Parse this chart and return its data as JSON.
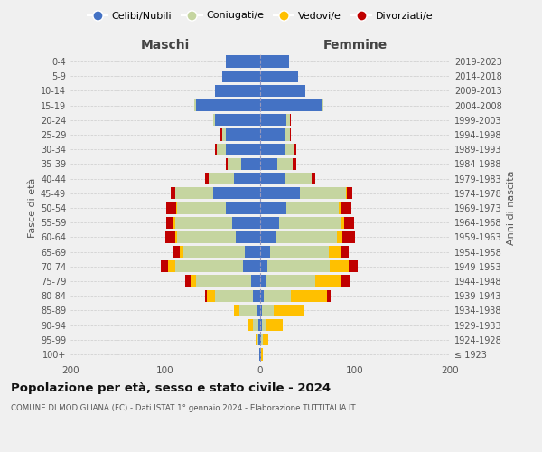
{
  "age_groups": [
    "100+",
    "95-99",
    "90-94",
    "85-89",
    "80-84",
    "75-79",
    "70-74",
    "65-69",
    "60-64",
    "55-59",
    "50-54",
    "45-49",
    "40-44",
    "35-39",
    "30-34",
    "25-29",
    "20-24",
    "15-19",
    "10-14",
    "5-9",
    "0-4"
  ],
  "birth_years": [
    "≤ 1923",
    "1924-1928",
    "1929-1933",
    "1934-1938",
    "1939-1943",
    "1944-1948",
    "1949-1953",
    "1954-1958",
    "1959-1963",
    "1964-1968",
    "1969-1973",
    "1974-1978",
    "1979-1983",
    "1984-1988",
    "1989-1993",
    "1994-1998",
    "1999-2003",
    "2004-2008",
    "2009-2013",
    "2014-2018",
    "2019-2023"
  ],
  "maschi_celibi": [
    1,
    2,
    2,
    4,
    8,
    10,
    18,
    16,
    26,
    30,
    36,
    50,
    28,
    20,
    36,
    36,
    48,
    68,
    48,
    40,
    36
  ],
  "maschi_coniugati": [
    0,
    2,
    6,
    18,
    40,
    58,
    72,
    65,
    62,
    60,
    52,
    40,
    26,
    14,
    10,
    4,
    2,
    2,
    0,
    0,
    0
  ],
  "maschi_vedovi": [
    0,
    1,
    4,
    6,
    8,
    5,
    7,
    4,
    2,
    1,
    1,
    0,
    0,
    0,
    0,
    0,
    0,
    0,
    0,
    0,
    0
  ],
  "maschi_divorziati": [
    0,
    0,
    0,
    0,
    2,
    6,
    8,
    6,
    10,
    8,
    10,
    4,
    4,
    2,
    2,
    2,
    0,
    0,
    0,
    0,
    0
  ],
  "femmine_nubili": [
    1,
    1,
    2,
    2,
    4,
    6,
    8,
    10,
    16,
    20,
    28,
    42,
    26,
    18,
    26,
    26,
    28,
    65,
    48,
    40,
    30
  ],
  "femmine_coniugate": [
    0,
    2,
    4,
    12,
    28,
    52,
    65,
    62,
    65,
    65,
    55,
    48,
    28,
    16,
    10,
    5,
    3,
    2,
    0,
    0,
    0
  ],
  "femmine_vedove": [
    2,
    6,
    18,
    32,
    38,
    28,
    20,
    13,
    6,
    4,
    3,
    1,
    0,
    0,
    0,
    0,
    0,
    0,
    0,
    0,
    0
  ],
  "femmine_divorziate": [
    0,
    0,
    0,
    1,
    4,
    8,
    10,
    8,
    13,
    10,
    10,
    6,
    4,
    4,
    2,
    1,
    1,
    0,
    0,
    0,
    0
  ],
  "colors": {
    "celibi": "#4472c4",
    "coniugati": "#c5d5a0",
    "vedovi": "#ffc000",
    "divorziati": "#c00000"
  },
  "xlim": 200,
  "title": "Popolazione per età, sesso e stato civile - 2024",
  "subtitle": "COMUNE DI MODIGLIANA (FC) - Dati ISTAT 1° gennaio 2024 - Elaborazione TUTTITALIA.IT",
  "ylabel_left": "Fasce di età",
  "ylabel_right": "Anni di nascita",
  "legend_labels": [
    "Celibi/Nubili",
    "Coniugati/e",
    "Vedovi/e",
    "Divorziati/e"
  ],
  "maschi_label": "Maschi",
  "femmine_label": "Femmine",
  "bg_color": "#f0f0f0"
}
